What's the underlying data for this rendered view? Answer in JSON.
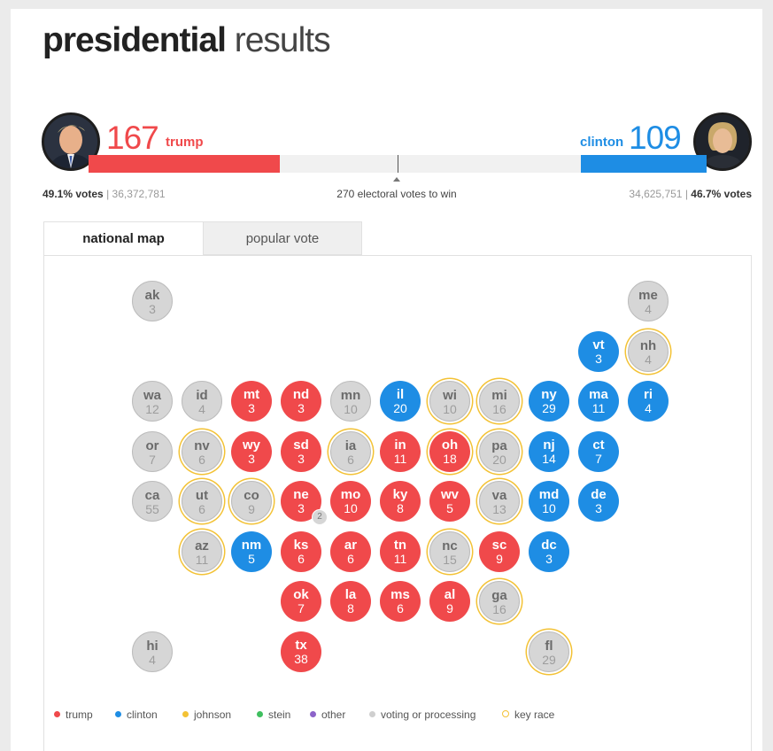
{
  "page": {
    "title_bold": "presidential",
    "title_light": "results"
  },
  "candidates": {
    "trump": {
      "name": "trump",
      "electoral": "167",
      "pct_votes": "49.1% votes",
      "votes": "36,372,781",
      "color": "#f0494b",
      "bar_fraction": 0.31
    },
    "clinton": {
      "name": "clinton",
      "electoral": "109",
      "pct_votes": "46.7% votes",
      "votes": "34,625,751",
      "color": "#1e8de4",
      "bar_fraction": 0.203
    }
  },
  "to_win_label": "270 electoral votes to win",
  "tabs": [
    {
      "label": "national map",
      "active": true
    },
    {
      "label": "popular vote",
      "active": false
    }
  ],
  "states": [
    {
      "ab": "ak",
      "ev": "3",
      "status": "pending",
      "key": false
    },
    {
      "ab": "me",
      "ev": "4",
      "status": "pending",
      "key": false
    },
    {
      "ab": "vt",
      "ev": "3",
      "status": "clinton",
      "key": false
    },
    {
      "ab": "nh",
      "ev": "4",
      "status": "pending",
      "key": true
    },
    {
      "ab": "wa",
      "ev": "12",
      "status": "pending",
      "key": false
    },
    {
      "ab": "id",
      "ev": "4",
      "status": "pending",
      "key": false
    },
    {
      "ab": "mt",
      "ev": "3",
      "status": "trump",
      "key": false
    },
    {
      "ab": "nd",
      "ev": "3",
      "status": "trump",
      "key": false
    },
    {
      "ab": "mn",
      "ev": "10",
      "status": "pending",
      "key": false
    },
    {
      "ab": "il",
      "ev": "20",
      "status": "clinton",
      "key": false
    },
    {
      "ab": "wi",
      "ev": "10",
      "status": "pending",
      "key": true
    },
    {
      "ab": "mi",
      "ev": "16",
      "status": "pending",
      "key": true
    },
    {
      "ab": "ny",
      "ev": "29",
      "status": "clinton",
      "key": false
    },
    {
      "ab": "ma",
      "ev": "11",
      "status": "clinton",
      "key": false
    },
    {
      "ab": "ri",
      "ev": "4",
      "status": "clinton",
      "key": false
    },
    {
      "ab": "or",
      "ev": "7",
      "status": "pending",
      "key": false
    },
    {
      "ab": "nv",
      "ev": "6",
      "status": "pending",
      "key": true
    },
    {
      "ab": "wy",
      "ev": "3",
      "status": "trump",
      "key": false
    },
    {
      "ab": "sd",
      "ev": "3",
      "status": "trump",
      "key": false
    },
    {
      "ab": "ia",
      "ev": "6",
      "status": "pending",
      "key": true
    },
    {
      "ab": "in",
      "ev": "11",
      "status": "trump",
      "key": false
    },
    {
      "ab": "oh",
      "ev": "18",
      "status": "trump",
      "key": true
    },
    {
      "ab": "pa",
      "ev": "20",
      "status": "pending",
      "key": true
    },
    {
      "ab": "nj",
      "ev": "14",
      "status": "clinton",
      "key": false
    },
    {
      "ab": "ct",
      "ev": "7",
      "status": "clinton",
      "key": false
    },
    {
      "ab": "ca",
      "ev": "55",
      "status": "pending",
      "key": false
    },
    {
      "ab": "ut",
      "ev": "6",
      "status": "pending",
      "key": true
    },
    {
      "ab": "co",
      "ev": "9",
      "status": "pending",
      "key": true
    },
    {
      "ab": "ne",
      "ev": "3",
      "status": "trump",
      "key": false
    },
    {
      "ab": "mo",
      "ev": "10",
      "status": "trump",
      "key": false
    },
    {
      "ab": "ky",
      "ev": "8",
      "status": "trump",
      "key": false
    },
    {
      "ab": "wv",
      "ev": "5",
      "status": "trump",
      "key": false
    },
    {
      "ab": "va",
      "ev": "13",
      "status": "pending",
      "key": true
    },
    {
      "ab": "md",
      "ev": "10",
      "status": "clinton",
      "key": false
    },
    {
      "ab": "de",
      "ev": "3",
      "status": "clinton",
      "key": false
    },
    {
      "ab": "az",
      "ev": "11",
      "status": "pending",
      "key": true
    },
    {
      "ab": "nm",
      "ev": "5",
      "status": "clinton",
      "key": false
    },
    {
      "ab": "ks",
      "ev": "6",
      "status": "trump",
      "key": false
    },
    {
      "ab": "ar",
      "ev": "6",
      "status": "trump",
      "key": false
    },
    {
      "ab": "tn",
      "ev": "11",
      "status": "trump",
      "key": false
    },
    {
      "ab": "nc",
      "ev": "15",
      "status": "pending",
      "key": true
    },
    {
      "ab": "sc",
      "ev": "9",
      "status": "trump",
      "key": false
    },
    {
      "ab": "dc",
      "ev": "3",
      "status": "clinton",
      "key": false
    },
    {
      "ab": "ok",
      "ev": "7",
      "status": "trump",
      "key": false
    },
    {
      "ab": "la",
      "ev": "8",
      "status": "trump",
      "key": false
    },
    {
      "ab": "ms",
      "ev": "6",
      "status": "trump",
      "key": false
    },
    {
      "ab": "al",
      "ev": "9",
      "status": "trump",
      "key": false
    },
    {
      "ab": "ga",
      "ev": "16",
      "status": "pending",
      "key": true
    },
    {
      "ab": "hi",
      "ev": "4",
      "status": "pending",
      "key": false
    },
    {
      "ab": "tx",
      "ev": "38",
      "status": "trump",
      "key": false
    },
    {
      "ab": "fl",
      "ev": "29",
      "status": "pending",
      "key": true
    }
  ],
  "ne_badge": "2",
  "legend": [
    {
      "label": "trump",
      "color": "#f0494b",
      "kind": "dot"
    },
    {
      "label": "clinton",
      "color": "#1e8de4",
      "kind": "dot"
    },
    {
      "label": "johnson",
      "color": "#f3c235",
      "kind": "dot"
    },
    {
      "label": "stein",
      "color": "#3fbf5f",
      "kind": "dot"
    },
    {
      "label": "other",
      "color": "#8c63c9",
      "kind": "dot"
    },
    {
      "label": "voting or processing",
      "color": "#cfcfcf",
      "kind": "dot"
    },
    {
      "label": "key race",
      "color": "#f3c235",
      "kind": "ring"
    }
  ]
}
